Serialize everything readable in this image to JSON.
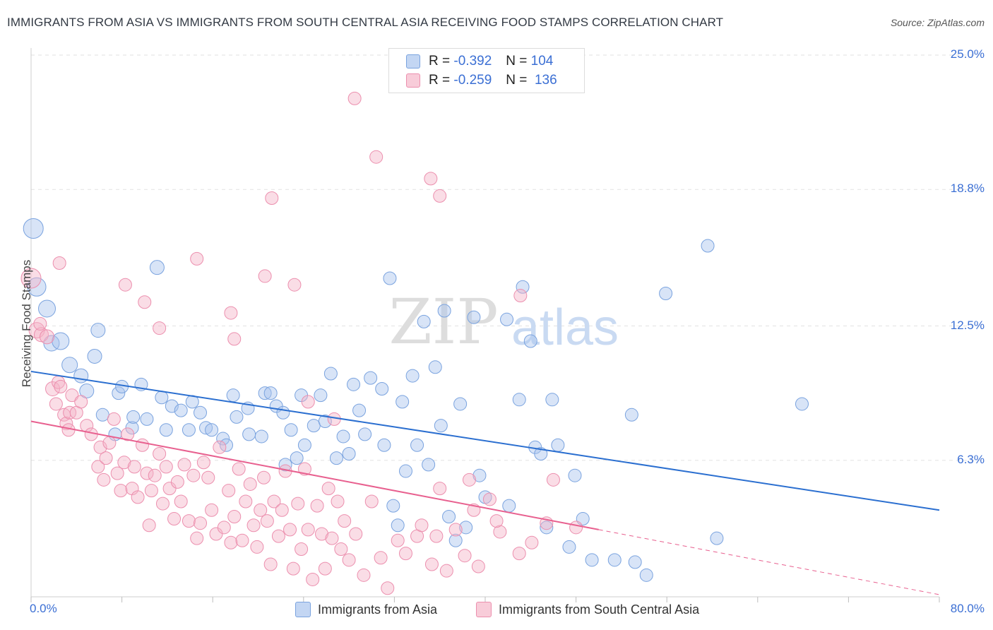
{
  "title": "IMMIGRANTS FROM ASIA VS IMMIGRANTS FROM SOUTH CENTRAL ASIA RECEIVING FOOD STAMPS CORRELATION CHART",
  "source": "Source: ZipAtlas.com",
  "watermark": {
    "zip": "ZIP",
    "atlas": "atlas"
  },
  "legend": {
    "rows": [
      {
        "r_label": "R =",
        "r_value": "-0.392",
        "n_label": "N =",
        "n_value": "104",
        "color": "#a9c4ee"
      },
      {
        "r_label": "R =",
        "r_value": "-0.259",
        "n_label": "N =",
        "n_value": "136",
        "color": "#f4b3c7"
      }
    ]
  },
  "chart_data": {
    "type": "scatter",
    "ylabel": "Receiving Food Stamps",
    "xlim": [
      0,
      80
    ],
    "ylim": [
      0,
      25
    ],
    "x_tick_labels": [
      "0.0%",
      "80.0%"
    ],
    "y_ticks": [
      6.3,
      12.5,
      18.8,
      25.0
    ],
    "y_tick_labels": [
      "6.3%",
      "12.5%",
      "18.8%",
      "25.0%"
    ],
    "grid": true,
    "legend_position": "top-center",
    "series": [
      {
        "name": "Immigrants from Asia",
        "color": "#a9c4ee",
        "stroke": "#7aa3df",
        "trend": {
          "x0": 0,
          "y0": 10.4,
          "x1": 80,
          "y1": 4.0,
          "color": "#2b6fd0"
        },
        "points": [
          [
            0.2,
            17.0,
            14
          ],
          [
            0.5,
            14.3,
            13
          ],
          [
            1.4,
            13.3,
            12
          ],
          [
            1.8,
            11.7,
            11
          ],
          [
            2.6,
            11.8,
            12
          ],
          [
            3.4,
            10.7,
            11
          ],
          [
            4.4,
            10.2,
            10
          ],
          [
            4.9,
            9.5,
            10
          ],
          [
            5.6,
            11.1,
            10
          ],
          [
            5.9,
            12.3,
            10
          ],
          [
            7.4,
            7.5,
            9
          ],
          [
            8.9,
            7.8,
            9
          ],
          [
            7.7,
            9.4,
            9
          ],
          [
            8.0,
            9.7,
            9
          ],
          [
            6.3,
            8.4,
            9
          ],
          [
            9.0,
            8.3,
            9
          ],
          [
            9.7,
            9.8,
            9
          ],
          [
            10.2,
            8.2,
            9
          ],
          [
            11.1,
            15.2,
            10
          ],
          [
            11.5,
            9.2,
            9
          ],
          [
            11.9,
            7.7,
            9
          ],
          [
            12.4,
            8.8,
            9
          ],
          [
            13.2,
            8.6,
            9
          ],
          [
            13.9,
            7.7,
            9
          ],
          [
            14.2,
            9.0,
            9
          ],
          [
            14.9,
            8.5,
            9
          ],
          [
            15.4,
            7.8,
            9
          ],
          [
            15.9,
            7.7,
            9
          ],
          [
            16.9,
            7.3,
            9
          ],
          [
            17.2,
            7.0,
            9
          ],
          [
            17.8,
            9.3,
            9
          ],
          [
            18.1,
            8.3,
            9
          ],
          [
            19.1,
            8.7,
            9
          ],
          [
            19.2,
            7.5,
            9
          ],
          [
            20.3,
            7.4,
            9
          ],
          [
            20.6,
            9.4,
            9
          ],
          [
            21.1,
            9.4,
            9
          ],
          [
            21.6,
            8.8,
            9
          ],
          [
            22.2,
            8.5,
            9
          ],
          [
            22.4,
            6.1,
            9
          ],
          [
            22.9,
            7.7,
            9
          ],
          [
            23.4,
            6.4,
            9
          ],
          [
            23.8,
            9.3,
            9
          ],
          [
            24.1,
            7.0,
            9
          ],
          [
            24.9,
            7.9,
            9
          ],
          [
            25.5,
            9.3,
            9
          ],
          [
            25.9,
            8.1,
            9
          ],
          [
            26.4,
            10.3,
            9
          ],
          [
            26.9,
            6.4,
            9
          ],
          [
            27.5,
            7.4,
            9
          ],
          [
            28.0,
            6.6,
            9
          ],
          [
            28.4,
            9.8,
            9
          ],
          [
            28.9,
            8.6,
            9
          ],
          [
            29.4,
            7.5,
            9
          ],
          [
            29.9,
            10.1,
            9
          ],
          [
            30.9,
            9.6,
            9
          ],
          [
            31.1,
            7.0,
            9
          ],
          [
            31.6,
            14.7,
            9
          ],
          [
            31.9,
            4.2,
            9
          ],
          [
            32.3,
            3.3,
            9
          ],
          [
            32.7,
            9.0,
            9
          ],
          [
            33.0,
            5.8,
            9
          ],
          [
            33.6,
            10.2,
            9
          ],
          [
            34.0,
            7.0,
            9
          ],
          [
            34.6,
            12.7,
            9
          ],
          [
            35.0,
            6.1,
            9
          ],
          [
            35.6,
            10.6,
            9
          ],
          [
            36.1,
            7.9,
            9
          ],
          [
            36.4,
            13.2,
            9
          ],
          [
            36.8,
            3.7,
            9
          ],
          [
            37.4,
            2.6,
            9
          ],
          [
            37.8,
            8.9,
            9
          ],
          [
            38.3,
            3.2,
            9
          ],
          [
            39.0,
            12.9,
            9
          ],
          [
            39.5,
            5.6,
            9
          ],
          [
            40.0,
            4.6,
            9
          ],
          [
            41.9,
            12.8,
            9
          ],
          [
            42.1,
            4.2,
            9
          ],
          [
            43.0,
            9.1,
            9
          ],
          [
            43.3,
            14.3,
            9
          ],
          [
            44.0,
            11.8,
            9
          ],
          [
            44.4,
            6.9,
            9
          ],
          [
            44.9,
            6.6,
            9
          ],
          [
            45.4,
            3.2,
            9
          ],
          [
            45.9,
            9.1,
            9
          ],
          [
            46.4,
            7.0,
            9
          ],
          [
            47.4,
            2.3,
            9
          ],
          [
            47.9,
            5.6,
            9
          ],
          [
            48.6,
            3.6,
            9
          ],
          [
            49.4,
            1.7,
            9
          ],
          [
            51.4,
            1.7,
            9
          ],
          [
            52.9,
            8.4,
            9
          ],
          [
            53.2,
            1.6,
            9
          ],
          [
            54.2,
            1.0,
            9
          ],
          [
            55.9,
            14.0,
            9
          ],
          [
            59.6,
            16.2,
            9
          ],
          [
            60.4,
            2.7,
            9
          ],
          [
            67.9,
            8.9,
            9
          ]
        ]
      },
      {
        "name": "Immigrants from South Central Asia",
        "color": "#f4b3c7",
        "stroke": "#ec8fae",
        "trend": {
          "x0": 0,
          "y0": 8.1,
          "x1": 50,
          "y1": 3.1,
          "color": "#e8608f",
          "dash_to": {
            "x": 80,
            "y": 0.1
          }
        },
        "points": [
          [
            0.0,
            14.7,
            14
          ],
          [
            0.5,
            12.3,
            11
          ],
          [
            0.9,
            12.1,
            10
          ],
          [
            1.4,
            12.0,
            10
          ],
          [
            1.9,
            9.6,
            10
          ],
          [
            2.2,
            8.9,
            9
          ],
          [
            2.4,
            9.9,
            9
          ],
          [
            2.6,
            9.7,
            9
          ],
          [
            2.9,
            8.4,
            9
          ],
          [
            3.1,
            8.0,
            9
          ],
          [
            3.3,
            7.7,
            9
          ],
          [
            3.4,
            8.5,
            9
          ],
          [
            3.6,
            9.3,
            9
          ],
          [
            4.0,
            8.5,
            9
          ],
          [
            4.4,
            9.0,
            9
          ],
          [
            4.9,
            7.9,
            9
          ],
          [
            5.3,
            7.5,
            9
          ],
          [
            5.9,
            6.0,
            9
          ],
          [
            6.1,
            6.9,
            9
          ],
          [
            6.4,
            5.4,
            9
          ],
          [
            6.6,
            6.4,
            9
          ],
          [
            6.9,
            7.1,
            9
          ],
          [
            7.3,
            8.2,
            9
          ],
          [
            7.6,
            5.7,
            9
          ],
          [
            7.9,
            4.9,
            9
          ],
          [
            8.2,
            6.2,
            9
          ],
          [
            8.5,
            7.5,
            9
          ],
          [
            8.9,
            5.0,
            9
          ],
          [
            9.1,
            6.0,
            9
          ],
          [
            9.4,
            4.6,
            9
          ],
          [
            9.8,
            7.0,
            9
          ],
          [
            10.2,
            5.7,
            9
          ],
          [
            10.4,
            3.3,
            9
          ],
          [
            10.6,
            4.9,
            9
          ],
          [
            10.9,
            5.6,
            9
          ],
          [
            11.3,
            6.6,
            9
          ],
          [
            11.6,
            4.3,
            9
          ],
          [
            11.9,
            6.0,
            9
          ],
          [
            12.2,
            5.0,
            9
          ],
          [
            12.6,
            3.6,
            9
          ],
          [
            12.9,
            5.3,
            9
          ],
          [
            13.2,
            4.4,
            9
          ],
          [
            13.5,
            6.1,
            9
          ],
          [
            13.9,
            3.5,
            9
          ],
          [
            14.3,
            5.6,
            9
          ],
          [
            14.6,
            2.7,
            9
          ],
          [
            14.9,
            3.4,
            9
          ],
          [
            15.2,
            6.2,
            9
          ],
          [
            15.6,
            5.5,
            9
          ],
          [
            15.9,
            4.0,
            9
          ],
          [
            16.3,
            2.9,
            9
          ],
          [
            16.6,
            6.9,
            9
          ],
          [
            17.0,
            3.2,
            9
          ],
          [
            17.4,
            4.9,
            9
          ],
          [
            17.6,
            2.5,
            9
          ],
          [
            17.9,
            3.7,
            9
          ],
          [
            18.3,
            5.9,
            9
          ],
          [
            18.6,
            2.6,
            9
          ],
          [
            18.9,
            4.4,
            9
          ],
          [
            19.3,
            5.2,
            9
          ],
          [
            19.6,
            3.3,
            9
          ],
          [
            19.9,
            2.3,
            9
          ],
          [
            20.2,
            4.0,
            9
          ],
          [
            20.5,
            5.5,
            9
          ],
          [
            20.8,
            3.5,
            9
          ],
          [
            21.1,
            1.5,
            9
          ],
          [
            21.4,
            4.4,
            9
          ],
          [
            21.8,
            2.8,
            9
          ],
          [
            22.1,
            4.0,
            9
          ],
          [
            22.4,
            5.8,
            9
          ],
          [
            22.8,
            3.1,
            9
          ],
          [
            23.1,
            1.3,
            9
          ],
          [
            23.5,
            4.3,
            9
          ],
          [
            23.8,
            2.2,
            9
          ],
          [
            24.1,
            5.9,
            9
          ],
          [
            24.4,
            3.1,
            9
          ],
          [
            24.8,
            0.8,
            9
          ],
          [
            25.2,
            4.2,
            9
          ],
          [
            25.6,
            2.9,
            9
          ],
          [
            25.9,
            1.3,
            9
          ],
          [
            26.2,
            5.0,
            9
          ],
          [
            26.5,
            2.7,
            9
          ],
          [
            27.0,
            4.4,
            9
          ],
          [
            27.3,
            2.2,
            9
          ],
          [
            27.6,
            3.5,
            9
          ],
          [
            28.0,
            1.7,
            9
          ],
          [
            28.6,
            2.9,
            9
          ],
          [
            29.3,
            1.0,
            9
          ],
          [
            30.0,
            4.4,
            9
          ],
          [
            30.8,
            1.8,
            9
          ],
          [
            31.4,
            0.4,
            9
          ],
          [
            32.3,
            2.6,
            9
          ],
          [
            33.0,
            2.0,
            9
          ],
          [
            34.0,
            2.8,
            9
          ],
          [
            34.4,
            3.3,
            9
          ],
          [
            35.3,
            1.5,
            9
          ],
          [
            35.7,
            2.8,
            9
          ],
          [
            36.0,
            5.0,
            9
          ],
          [
            36.6,
            1.2,
            9
          ],
          [
            37.4,
            3.1,
            9
          ],
          [
            38.2,
            1.9,
            9
          ],
          [
            38.6,
            5.4,
            9
          ],
          [
            39.4,
            1.4,
            9
          ],
          [
            40.4,
            4.5,
            9
          ],
          [
            41.3,
            3.0,
            9
          ],
          [
            43.1,
            13.9,
            9
          ],
          [
            44.1,
            2.5,
            9
          ],
          [
            45.4,
            3.4,
            9
          ],
          [
            46.0,
            5.4,
            9
          ],
          [
            2.5,
            15.4,
            9
          ],
          [
            8.3,
            14.4,
            9
          ],
          [
            10.0,
            13.6,
            9
          ],
          [
            11.3,
            12.4,
            9
          ],
          [
            14.6,
            15.6,
            9
          ],
          [
            17.6,
            13.1,
            9
          ],
          [
            17.9,
            11.9,
            9
          ],
          [
            20.6,
            14.8,
            9
          ],
          [
            21.2,
            18.4,
            9
          ],
          [
            23.2,
            14.4,
            9
          ],
          [
            24.4,
            9.0,
            9
          ],
          [
            26.7,
            8.2,
            9
          ],
          [
            28.5,
            23.0,
            9
          ],
          [
            30.4,
            20.3,
            9
          ],
          [
            35.2,
            19.3,
            9
          ],
          [
            36.0,
            18.5,
            9
          ],
          [
            39.0,
            4.0,
            9
          ],
          [
            41.0,
            3.5,
            9
          ],
          [
            43.0,
            2.0,
            9
          ],
          [
            48.0,
            3.2,
            9
          ],
          [
            0.8,
            12.6,
            9
          ]
        ]
      }
    ]
  }
}
